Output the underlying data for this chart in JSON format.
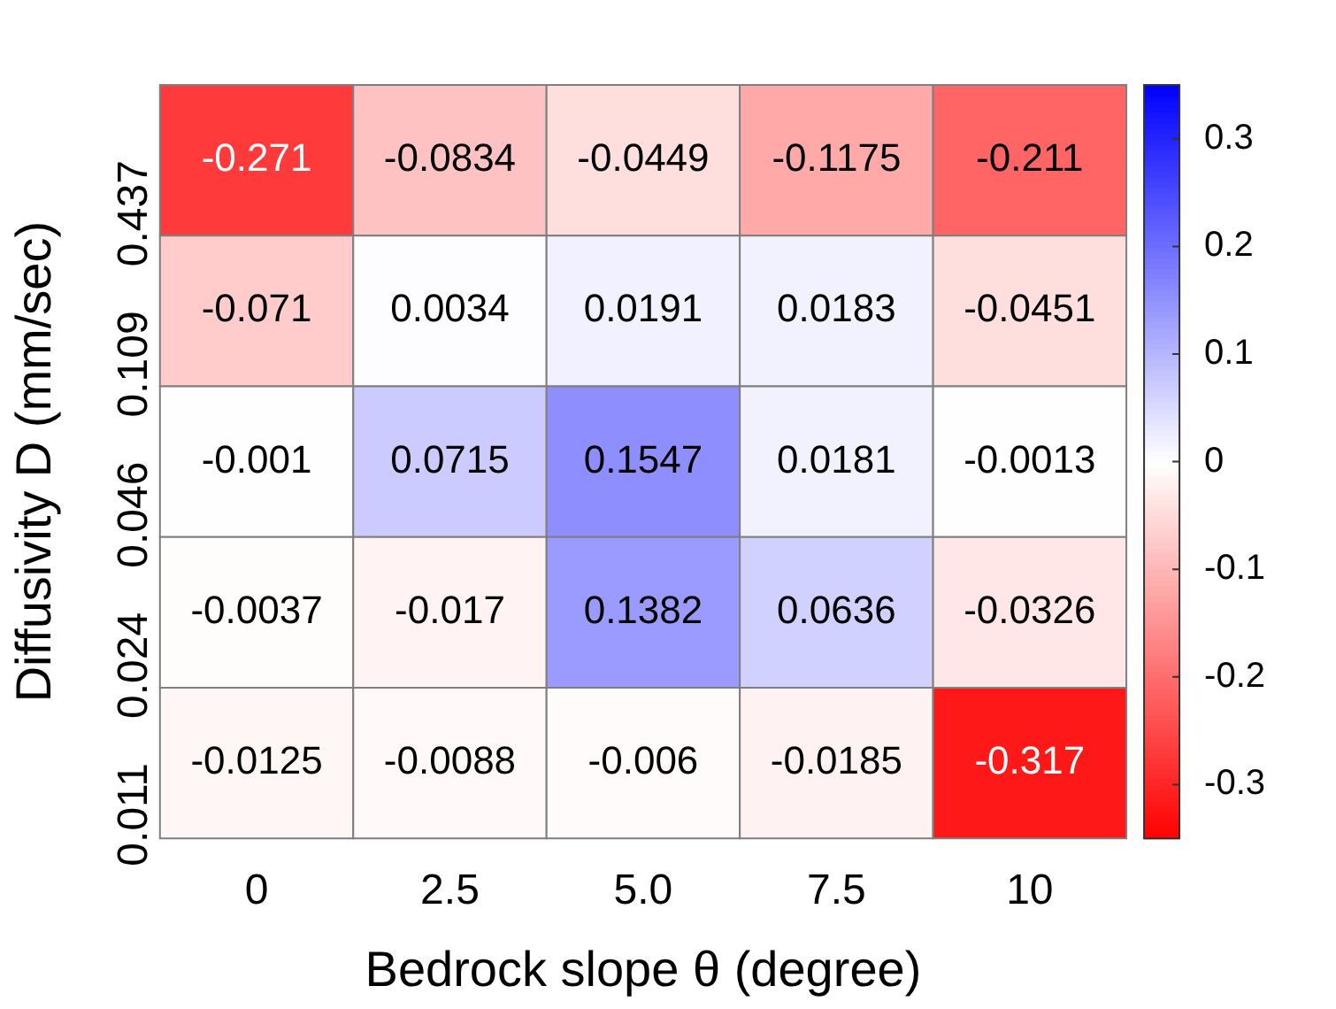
{
  "chart_data": {
    "type": "heatmap",
    "xlabel": "Bedrock slope θ (degree)",
    "ylabel": "Diffusivity D (mm/sec)",
    "categories": [
      "0",
      "2.5",
      "5.0",
      "7.5",
      "10"
    ],
    "y_categories": [
      "0.437",
      "0.109",
      "0.046",
      "0.024",
      "0.011"
    ],
    "cells": [
      [
        -0.271,
        -0.0834,
        -0.0449,
        -0.1175,
        -0.211
      ],
      [
        -0.071,
        0.0034,
        0.0191,
        0.0183,
        -0.0451
      ],
      [
        -0.001,
        0.0715,
        0.1547,
        0.0181,
        -0.0013
      ],
      [
        -0.0037,
        -0.017,
        0.1382,
        0.0636,
        -0.0326
      ],
      [
        -0.0125,
        -0.0088,
        -0.006,
        -0.0185,
        -0.317
      ]
    ],
    "data_labels": true,
    "clim": [
      -0.35,
      0.35
    ],
    "cticks": [
      -0.3,
      -0.2,
      -0.1,
      0,
      0.1,
      0.2,
      0.3
    ]
  }
}
